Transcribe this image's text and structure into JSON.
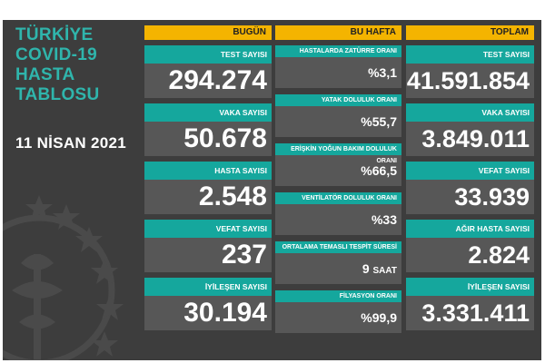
{
  "title_lines": [
    "TÜRKİYE",
    "COVID-19",
    "HASTA",
    "TABLOSU"
  ],
  "date": "11 NİSAN 2021",
  "colors": {
    "teal": "#15a79d",
    "title_teal": "#2fb5ac",
    "gold": "#f4b400",
    "panel": "#575757",
    "background": "#3d3d3d"
  },
  "today": {
    "header": "BUGÜN",
    "items": [
      {
        "label": "TEST SAYISI",
        "value": "294.274"
      },
      {
        "label": "VAKA SAYISI",
        "value": "50.678"
      },
      {
        "label": "HASTA SAYISI",
        "value": "2.548"
      },
      {
        "label": "VEFAT SAYISI",
        "value": "237"
      },
      {
        "label": "İYİLEŞEN SAYISI",
        "value": "30.194"
      }
    ]
  },
  "week": {
    "header": "BU HAFTA",
    "items": [
      {
        "label": "HASTALARDA ZATÜRRE ORANI",
        "value": "%3,1",
        "unit": ""
      },
      {
        "label": "YATAK DOLULUK ORANI",
        "value": "%55,7",
        "unit": ""
      },
      {
        "label": "ERİŞKİN YOĞUN BAKIM DOLULUK ORANI",
        "value": "%66,5",
        "unit": ""
      },
      {
        "label": "VENTİLATÖR DOLULUK ORANI",
        "value": "%33",
        "unit": ""
      },
      {
        "label": "ORTALAMA TEMASLI TESPİT SÜRESİ",
        "value": "9",
        "unit": "SAAT"
      },
      {
        "label": "FİLYASYON ORANI",
        "value": "%99,9",
        "unit": ""
      }
    ]
  },
  "total": {
    "header": "TOPLAM",
    "items": [
      {
        "label": "TEST SAYISI",
        "value": "41.591.854"
      },
      {
        "label": "VAKA SAYISI",
        "value": "3.849.011"
      },
      {
        "label": "VEFAT SAYISI",
        "value": "33.939"
      },
      {
        "label": "AĞIR HASTA SAYISI",
        "value": "2.824"
      },
      {
        "label": "İYİLEŞEN SAYISI",
        "value": "3.331.411"
      }
    ]
  }
}
